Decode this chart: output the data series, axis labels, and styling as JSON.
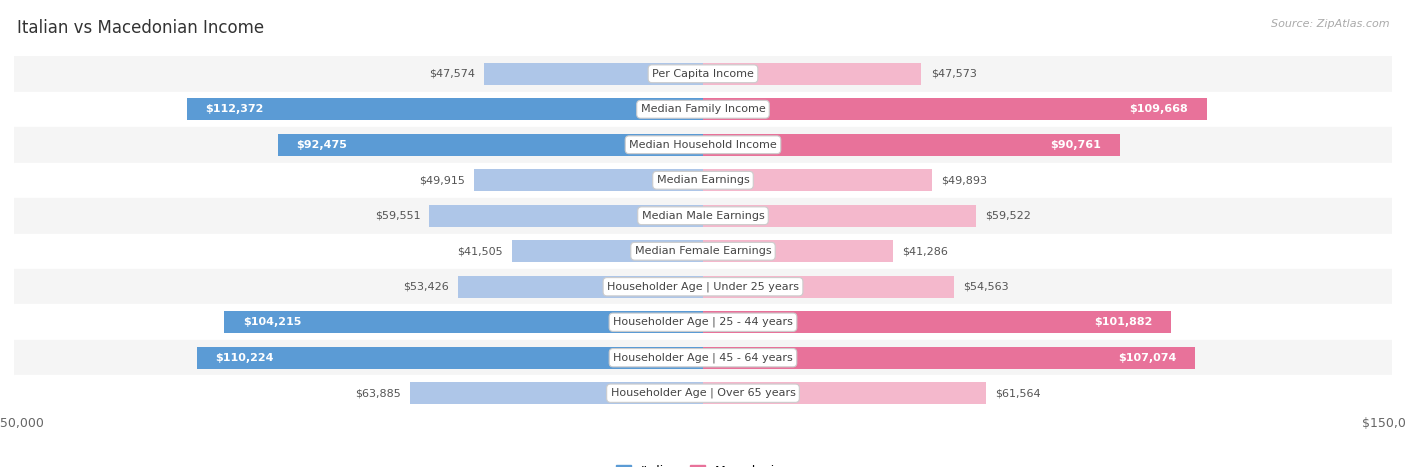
{
  "title": "Italian vs Macedonian Income",
  "source": "Source: ZipAtlas.com",
  "categories": [
    "Per Capita Income",
    "Median Family Income",
    "Median Household Income",
    "Median Earnings",
    "Median Male Earnings",
    "Median Female Earnings",
    "Householder Age | Under 25 years",
    "Householder Age | 25 - 44 years",
    "Householder Age | 45 - 64 years",
    "Householder Age | Over 65 years"
  ],
  "italian_values": [
    47574,
    112372,
    92475,
    49915,
    59551,
    41505,
    53426,
    104215,
    110224,
    63885
  ],
  "macedonian_values": [
    47573,
    109668,
    90761,
    49893,
    59522,
    41286,
    54563,
    101882,
    107074,
    61564
  ],
  "italian_labels": [
    "$47,574",
    "$112,372",
    "$92,475",
    "$49,915",
    "$59,551",
    "$41,505",
    "$53,426",
    "$104,215",
    "$110,224",
    "$63,885"
  ],
  "macedonian_labels": [
    "$47,573",
    "$109,668",
    "$90,761",
    "$49,893",
    "$59,522",
    "$41,286",
    "$54,563",
    "$101,882",
    "$107,074",
    "$61,564"
  ],
  "max_value": 150000,
  "italian_color_light": "#aec6e8",
  "italian_color_dark": "#5b9bd5",
  "macedonian_color_light": "#f4b8cc",
  "macedonian_color_dark": "#e8729a",
  "row_bg_even": "#f5f5f5",
  "row_bg_odd": "#ffffff",
  "label_dark": "#555555",
  "label_white": "#ffffff",
  "title_color": "#333333",
  "source_color": "#aaaaaa",
  "threshold": 70000
}
